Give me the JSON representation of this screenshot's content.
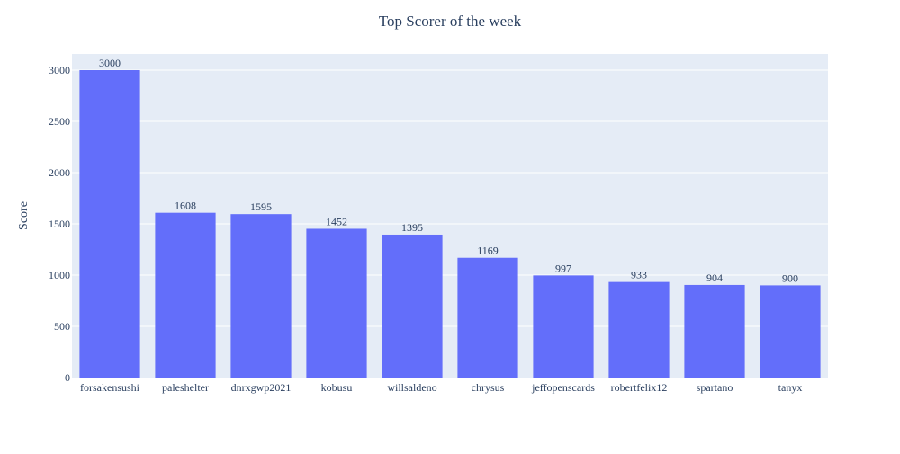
{
  "chart_data": {
    "type": "bar",
    "title": "Top Scorer of the week",
    "xlabel": "",
    "ylabel": "Score",
    "categories": [
      "forsakensushi",
      "paleshelter",
      "dnrxgwp2021",
      "kobusu",
      "willsaldeno",
      "chrysus",
      "jeffopenscards",
      "robertfelix12",
      "spartano",
      "tanyx"
    ],
    "values": [
      3000,
      1608,
      1595,
      1452,
      1395,
      1169,
      997,
      933,
      904,
      900
    ],
    "ylim": [
      0,
      3157.9
    ],
    "yticks": [
      0,
      500,
      1000,
      1500,
      2000,
      2500,
      3000
    ],
    "grid": true,
    "legend": "none",
    "colors": {
      "bar": "#636efa",
      "plot_background": "#e5ecf6",
      "grid": "#ffffff",
      "text": "#2a3f5f"
    }
  }
}
